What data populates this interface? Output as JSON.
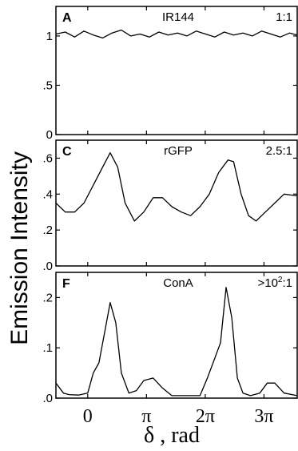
{
  "figure": {
    "ylabel": "Emission Intensity",
    "xlabel": "δ , rad",
    "x_ticks": [
      {
        "value": 0,
        "label": "0"
      },
      {
        "value": 3.1416,
        "label": "π"
      },
      {
        "value": 6.2832,
        "label": "2π"
      },
      {
        "value": 9.4248,
        "label": "3π"
      }
    ],
    "colors": {
      "line": "#000000",
      "axis": "#000000",
      "background": "#ffffff"
    }
  },
  "chart_data": [
    {
      "type": "line",
      "panel_letter": "A",
      "title": "IR144",
      "ratio": "1:1",
      "xlim": [
        -1.7,
        11.2
      ],
      "ylim": [
        0,
        1.3
      ],
      "y_ticks": [
        {
          "value": 0,
          "label": "0"
        },
        {
          "value": 0.5,
          "label": ".5"
        },
        {
          "value": 1,
          "label": "1"
        }
      ],
      "series": [
        {
          "x": [
            -1.7,
            -1.2,
            -0.7,
            -0.2,
            0.3,
            0.8,
            1.3,
            1.8,
            2.3,
            2.8,
            3.3,
            3.8,
            4.3,
            4.8,
            5.3,
            5.8,
            6.3,
            6.8,
            7.3,
            7.8,
            8.3,
            8.8,
            9.3,
            9.8,
            10.3,
            10.8,
            11.2
          ],
          "values": [
            1.02,
            1.04,
            0.99,
            1.05,
            1.01,
            0.98,
            1.03,
            1.06,
            1.0,
            1.02,
            0.99,
            1.04,
            1.01,
            1.03,
            1.0,
            1.05,
            1.02,
            0.99,
            1.04,
            1.01,
            1.03,
            1.0,
            1.05,
            1.02,
            0.99,
            1.03,
            1.01
          ]
        }
      ]
    },
    {
      "type": "line",
      "panel_letter": "C",
      "title": "rGFP",
      "ratio": "2.5:1",
      "xlim": [
        -1.7,
        11.2
      ],
      "ylim": [
        0,
        0.7
      ],
      "y_ticks": [
        {
          "value": 0,
          "label": ".0"
        },
        {
          "value": 0.2,
          "label": ".2"
        },
        {
          "value": 0.4,
          "label": ".4"
        },
        {
          "value": 0.6,
          "label": ".6"
        }
      ],
      "series": [
        {
          "x": [
            -1.7,
            -1.2,
            -0.7,
            -0.2,
            0.3,
            0.8,
            1.2,
            1.6,
            2.0,
            2.5,
            3.0,
            3.5,
            4.0,
            4.5,
            5.0,
            5.5,
            6.0,
            6.5,
            7.0,
            7.5,
            7.8,
            8.2,
            8.6,
            9.0,
            9.5,
            10.0,
            10.5,
            11.2
          ],
          "values": [
            0.35,
            0.3,
            0.3,
            0.35,
            0.45,
            0.55,
            0.63,
            0.55,
            0.35,
            0.25,
            0.3,
            0.38,
            0.38,
            0.33,
            0.3,
            0.28,
            0.33,
            0.4,
            0.52,
            0.59,
            0.58,
            0.4,
            0.28,
            0.25,
            0.3,
            0.35,
            0.4,
            0.39
          ]
        }
      ]
    },
    {
      "type": "line",
      "panel_letter": "F",
      "title": "ConA",
      "ratio": ">10",
      "ratio_sup": "2",
      "ratio_suffix": ":1",
      "xlim": [
        -1.7,
        11.2
      ],
      "ylim": [
        0,
        0.25
      ],
      "y_ticks": [
        {
          "value": 0,
          "label": ".0"
        },
        {
          "value": 0.1,
          "label": ".1"
        },
        {
          "value": 0.2,
          "label": ".2"
        }
      ],
      "series": [
        {
          "x": [
            -1.7,
            -1.3,
            -1.0,
            -0.5,
            0.0,
            0.3,
            0.6,
            0.9,
            1.2,
            1.5,
            1.8,
            2.2,
            2.6,
            3.0,
            3.5,
            4.0,
            4.5,
            5.0,
            5.5,
            6.0,
            6.4,
            6.8,
            7.1,
            7.4,
            7.7,
            8.0,
            8.3,
            8.7,
            9.2,
            9.6,
            10.0,
            10.5,
            11.2
          ],
          "values": [
            0.03,
            0.01,
            0.007,
            0.006,
            0.01,
            0.05,
            0.07,
            0.13,
            0.19,
            0.15,
            0.05,
            0.01,
            0.015,
            0.035,
            0.04,
            0.02,
            0.005,
            0.005,
            0.005,
            0.005,
            0.04,
            0.08,
            0.11,
            0.22,
            0.16,
            0.04,
            0.01,
            0.005,
            0.01,
            0.03,
            0.03,
            0.01,
            0.005
          ]
        }
      ]
    }
  ]
}
